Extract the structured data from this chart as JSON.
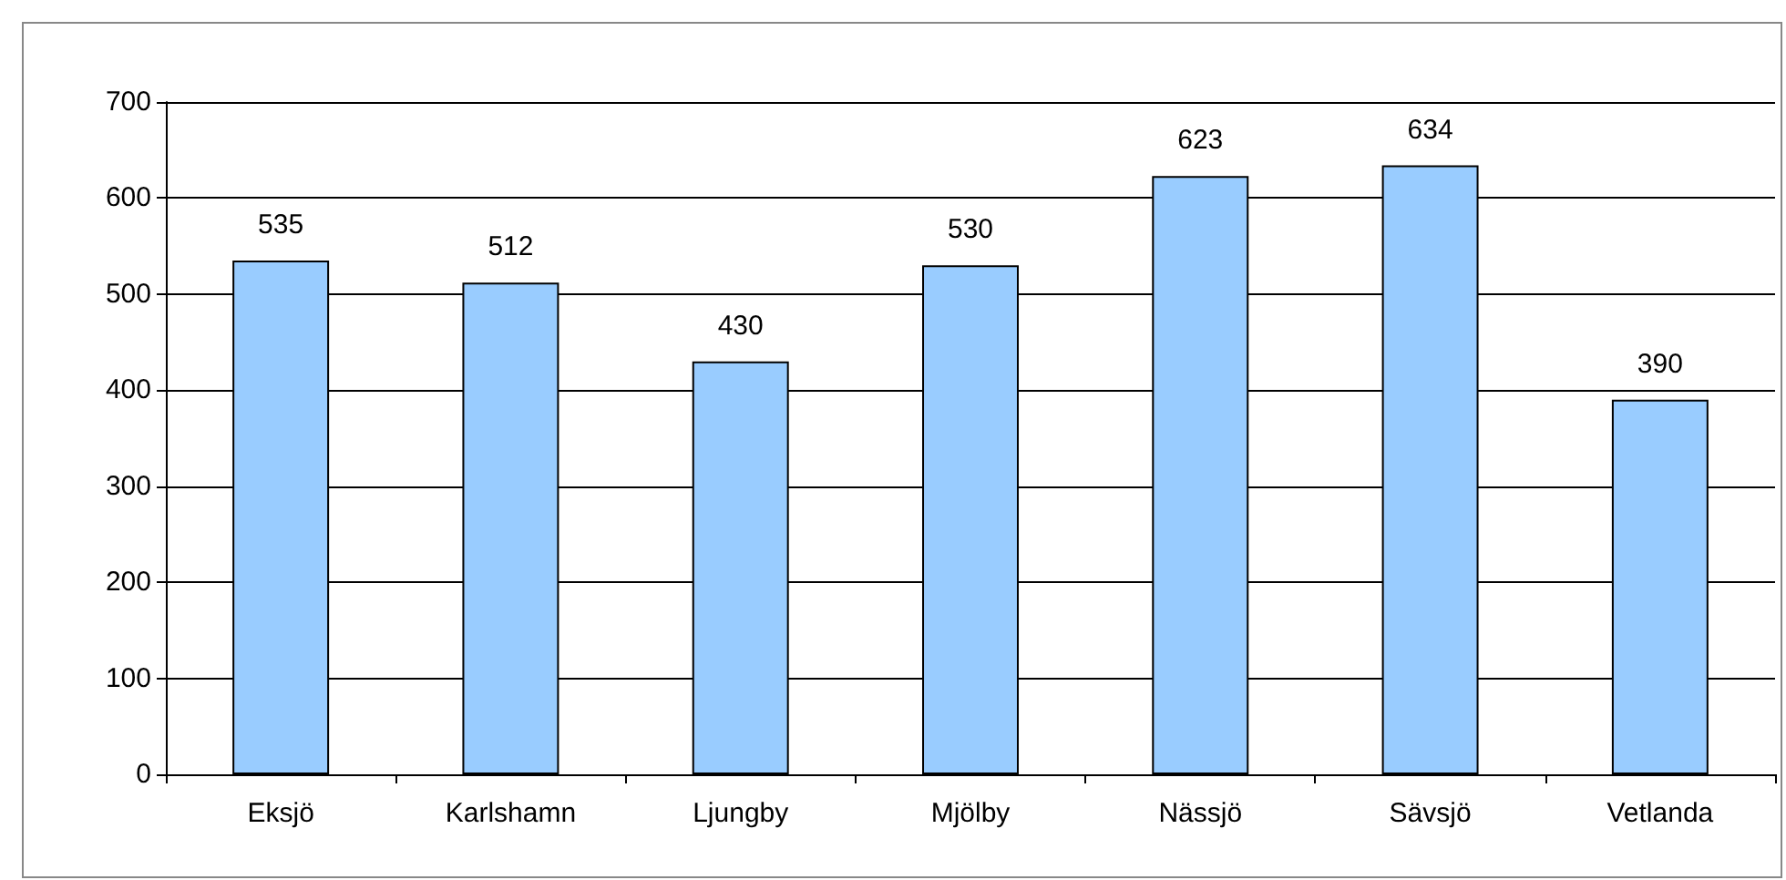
{
  "chart_data": {
    "type": "bar",
    "categories": [
      "Eksjö",
      "Karlshamn",
      "Ljungby",
      "Mjölby",
      "Nässjö",
      "Sävsjö",
      "Vetlanda"
    ],
    "values": [
      535,
      512,
      430,
      530,
      623,
      634,
      390
    ],
    "color": "#99ccff",
    "ylim": [
      0,
      700
    ],
    "yticks": [
      0,
      100,
      200,
      300,
      400,
      500,
      600,
      700
    ],
    "grid": "y",
    "data_labels": true
  }
}
